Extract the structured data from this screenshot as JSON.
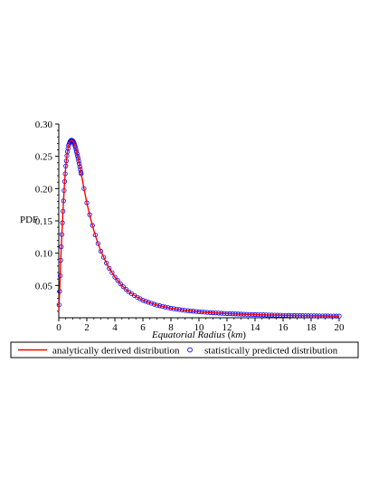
{
  "chart_data": {
    "type": "line",
    "ylabel": "PDF",
    "xlabel_parts": {
      "name": "Equatorial Radius",
      "unit": "km"
    },
    "xlim": [
      0,
      20
    ],
    "ylim": [
      0,
      0.3
    ],
    "x_ticks": [
      0,
      2,
      4,
      6,
      8,
      10,
      12,
      14,
      16,
      18,
      20
    ],
    "y_ticks": [
      0.05,
      0.1,
      0.15,
      0.2,
      0.25,
      0.3
    ],
    "y_tick_labels": [
      "0.05",
      "0.10",
      "0.15",
      "0.20",
      "0.25",
      "0.30"
    ],
    "grid": false,
    "legend_position": "bottom",
    "series": [
      {
        "name": "analytically derived distribution",
        "style": "line",
        "color": "#ff0000",
        "x": [
          0.0,
          0.05,
          0.1,
          0.15,
          0.2,
          0.3,
          0.4,
          0.5,
          0.6,
          0.7,
          0.8,
          0.9,
          1.0,
          1.1,
          1.2,
          1.4,
          1.6,
          1.8,
          2.0,
          2.25,
          2.5,
          2.75,
          3.0,
          3.5,
          4.0,
          4.5,
          5.0,
          5.5,
          6.0,
          7.0,
          8.0,
          9.0,
          10.0,
          11.0,
          12.0,
          13.0,
          14.0,
          15.0,
          16.0,
          17.0,
          18.0,
          19.0,
          20.0
        ],
        "y": [
          0.01,
          0.035,
          0.065,
          0.095,
          0.12,
          0.165,
          0.205,
          0.235,
          0.255,
          0.267,
          0.273,
          0.275,
          0.274,
          0.27,
          0.263,
          0.245,
          0.223,
          0.2,
          0.178,
          0.155,
          0.135,
          0.118,
          0.103,
          0.08,
          0.063,
          0.05,
          0.04,
          0.033,
          0.027,
          0.0195,
          0.0147,
          0.0115,
          0.0093,
          0.0077,
          0.0065,
          0.0056,
          0.0049,
          0.0043,
          0.0038,
          0.0034,
          0.0031,
          0.0028,
          0.0026
        ]
      },
      {
        "name": "statistically predicted distribution",
        "style": "points",
        "color": "#0000ff"
      }
    ]
  }
}
